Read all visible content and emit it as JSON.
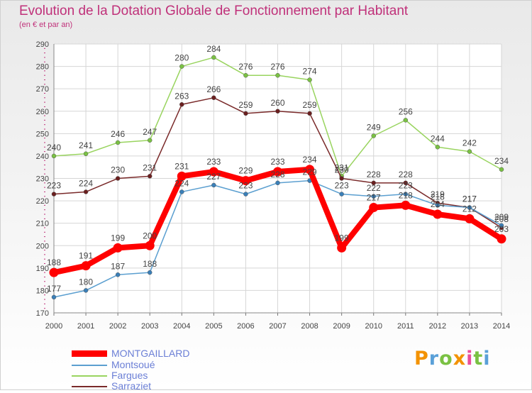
{
  "chart_data": {
    "type": "line",
    "title": "Evolution de la Dotation Globale de Fonctionnement par Habitant",
    "subtitle": "(en € et par an)",
    "x": [
      "2000",
      "2001",
      "2002",
      "2003",
      "2004",
      "2005",
      "2006",
      "2007",
      "2008",
      "2009",
      "2010",
      "2011",
      "2012",
      "2013",
      "2014"
    ],
    "ylim": [
      170,
      290
    ],
    "yticks": [
      170,
      180,
      190,
      200,
      210,
      220,
      230,
      240,
      250,
      260,
      270,
      280,
      290
    ],
    "grid": true,
    "legend_position": "bottom-left",
    "series": [
      {
        "name": "Fargues",
        "color": "#99d45f",
        "point_color": "#7ac143",
        "width": 1.5,
        "values": [
          240,
          241,
          246,
          247,
          280,
          284,
          276,
          276,
          274,
          231,
          249,
          256,
          244,
          242,
          234
        ],
        "labels": [
          "240",
          "241",
          "246",
          "247",
          "280",
          "284",
          "276",
          "276",
          "274",
          "231",
          "249",
          "256",
          "244",
          "242",
          "234"
        ]
      },
      {
        "name": "Sarraziet",
        "color": "#7a2a2a",
        "point_color": "#6b1f1f",
        "width": 1.5,
        "values": [
          223,
          224,
          230,
          231,
          263,
          266,
          259,
          260,
          259,
          230,
          228,
          228,
          219,
          217,
          208
        ],
        "labels": [
          "223",
          "224",
          "230",
          "231",
          "263",
          "266",
          "259",
          "260",
          "259",
          "230",
          "228",
          "228",
          "219",
          "217",
          "208"
        ]
      },
      {
        "name": "Montsoué",
        "color": "#5b9fd0",
        "point_color": "#3a7fb8",
        "width": 1.5,
        "values": [
          177,
          180,
          187,
          188,
          224,
          227,
          223,
          228,
          229,
          223,
          222,
          223,
          218,
          217,
          209
        ],
        "labels": [
          "177",
          "180",
          "187",
          "188",
          "224",
          "227",
          "223",
          "228",
          "229",
          "223",
          "222",
          "223",
          "218",
          "217",
          "209"
        ]
      },
      {
        "name": "MONTGAILLARD",
        "color": "#ff0000",
        "point_color": "#ff0000",
        "width": 8,
        "values": [
          188,
          191,
          199,
          200,
          231,
          233,
          229,
          233,
          234,
          199,
          217,
          218,
          214,
          212,
          203
        ],
        "labels": [
          "188",
          "191",
          "199",
          "200",
          "231",
          "233",
          "229",
          "233",
          "234",
          "199",
          "217",
          "218",
          "214",
          "212",
          "203"
        ]
      }
    ]
  },
  "legend": {
    "items": [
      {
        "name": "MONTGAILLARD",
        "color": "#ff0000"
      },
      {
        "name": "Montsoué",
        "color": "#5b9fd0"
      },
      {
        "name": "Fargues",
        "color": "#99d45f"
      },
      {
        "name": "Sarraziet",
        "color": "#7a2a2a"
      }
    ]
  },
  "brand": {
    "letters": [
      "P",
      "r",
      "o",
      "x",
      "i",
      "t",
      "i"
    ],
    "colors": [
      "#f39200",
      "#5aa0d8",
      "#7ac143",
      "#f39200",
      "#e94e9b",
      "#7ac143",
      "#5aa0d8"
    ]
  }
}
